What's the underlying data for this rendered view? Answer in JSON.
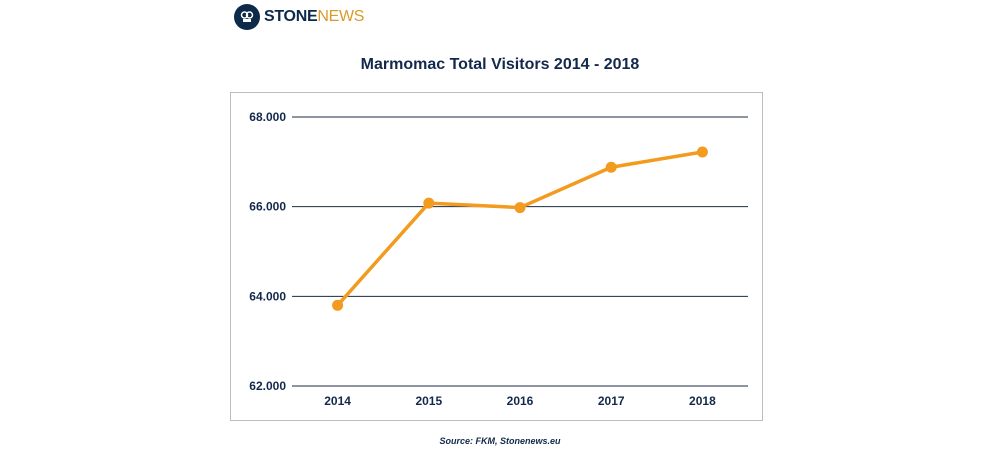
{
  "logo": {
    "part1": "STONE",
    "part2": "NEWS"
  },
  "footer": {
    "source": "Source: FKM, Stonenews.eu"
  },
  "chart_data": {
    "type": "line",
    "title": "Marmomac Total Visitors 2014 - 2018",
    "xlabel": "",
    "ylabel": "",
    "categories": [
      "2014",
      "2015",
      "2016",
      "2017",
      "2018"
    ],
    "series": [
      {
        "values": [
          63800,
          66080,
          65980,
          66880,
          67220
        ],
        "color": "#f29b1f"
      }
    ],
    "ylim": [
      62000,
      68000
    ],
    "yticks": [
      62000,
      64000,
      66000,
      68000
    ],
    "ytick_labels": [
      "62.000",
      "64.000",
      "66.000",
      "68.000"
    ],
    "grid": true,
    "grid_color": "#1b2b45",
    "legend": "none"
  }
}
